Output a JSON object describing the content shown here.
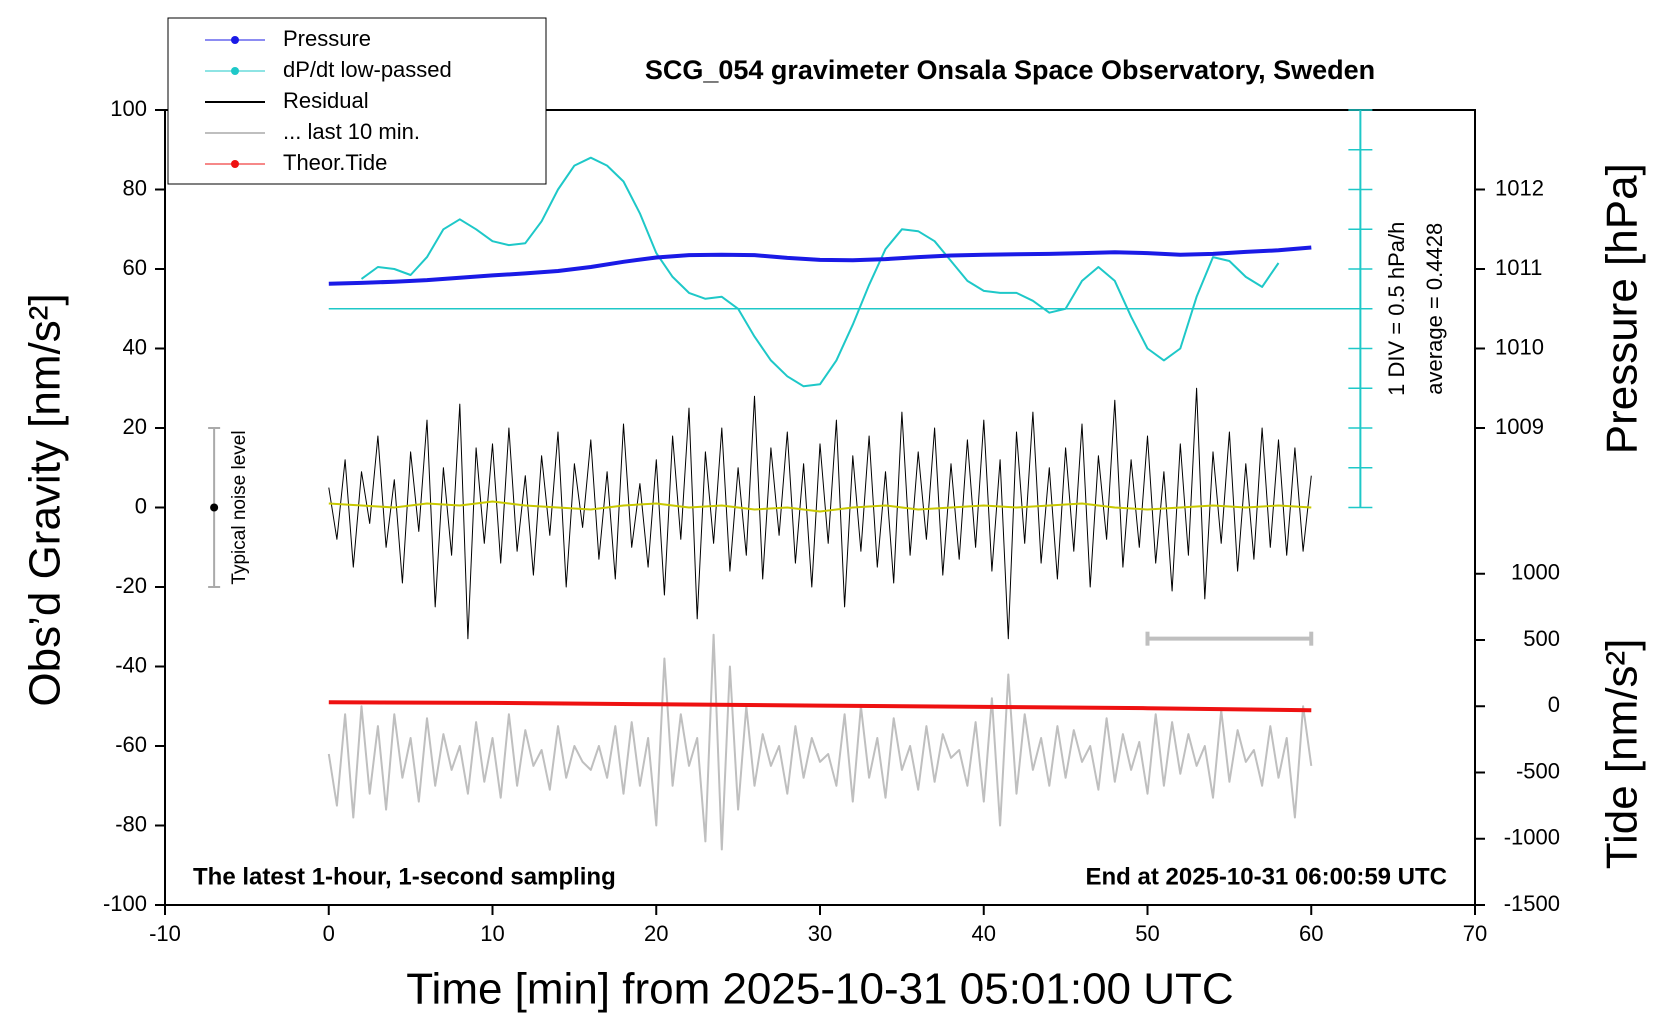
{
  "chart_data": {
    "type": "line",
    "title": "SCG_054 gravimeter Onsala Space Observatory, Sweden",
    "x_label": "Time [min] from 2025-10-31 05:01:00 UTC",
    "y_label": "Obs’d Gravity [nm/s²]",
    "y2_label": "Pressure [hPa]",
    "y3_label": "Tide [nm/s²]",
    "note_left": "The latest 1-hour, 1-second sampling",
    "note_right": "End at 2025-10-31 06:00:59 UTC",
    "xlim": [
      -10,
      70
    ],
    "xticks": [
      -10,
      0,
      10,
      20,
      30,
      40,
      50,
      60,
      70
    ],
    "ylim": [
      -100,
      100
    ],
    "yticks": [
      -100,
      -80,
      -60,
      -40,
      -20,
      0,
      20,
      40,
      60,
      80,
      100
    ],
    "y2lim": [
      1003,
      1013
    ],
    "y2ticks": [
      1009,
      1010,
      1011,
      1012
    ],
    "y3lim": [
      -1500,
      4500
    ],
    "y3ticks": [
      -1500,
      -1000,
      -500,
      0,
      500,
      1000
    ],
    "dpdt_scale": {
      "x": 63,
      "ylim": [
        0,
        100
      ],
      "ticks": [
        0,
        10,
        20,
        30,
        40,
        50,
        60,
        70,
        80,
        90,
        100
      ],
      "baseline": 50,
      "div_label": "1 DIV = 0.5 hPa/h",
      "average_label": "average = 0.4428"
    },
    "noise": {
      "x": -7,
      "value": 0,
      "error": 20,
      "label": "Typical noise level"
    },
    "window_bar": {
      "x": [
        50,
        60
      ],
      "y": -33
    },
    "x": [
      0,
      0.5,
      1,
      1.5,
      2,
      2.5,
      3,
      3.5,
      4,
      4.5,
      5,
      5.5,
      6,
      6.5,
      7,
      7.5,
      8,
      8.5,
      9,
      9.5,
      10,
      10.5,
      11,
      11.5,
      12,
      12.5,
      13,
      13.5,
      14,
      14.5,
      15,
      15.5,
      16,
      16.5,
      17,
      17.5,
      18,
      18.5,
      19,
      19.5,
      20,
      20.5,
      21,
      21.5,
      22,
      22.5,
      23,
      23.5,
      24,
      24.5,
      25,
      25.5,
      26,
      26.5,
      27,
      27.5,
      28,
      28.5,
      29,
      29.5,
      30,
      30.5,
      31,
      31.5,
      32,
      32.5,
      33,
      33.5,
      34,
      34.5,
      35,
      35.5,
      36,
      36.5,
      37,
      37.5,
      38,
      38.5,
      39,
      39.5,
      40,
      40.5,
      41,
      41.5,
      42,
      42.5,
      43,
      43.5,
      44,
      44.5,
      45,
      45.5,
      46,
      46.5,
      47,
      47.5,
      48,
      48.5,
      49,
      49.5,
      50,
      50.5,
      51,
      51.5,
      52,
      52.5,
      53,
      53.5,
      54,
      54.5,
      55,
      55.5,
      56,
      56.5,
      57,
      57.5,
      58,
      58.5,
      59,
      59.5,
      60
    ],
    "series": [
      {
        "name": "Pressure",
        "color": "#1a1ae6",
        "axis": "y2",
        "width": 4,
        "marker": true,
        "x": [
          0,
          2,
          4,
          6,
          8,
          10,
          12,
          14,
          16,
          18,
          20,
          22,
          24,
          26,
          28,
          30,
          32,
          34,
          36,
          38,
          40,
          42,
          44,
          46,
          48,
          50,
          52,
          54,
          56,
          58,
          60
        ],
        "values": [
          1010.815,
          1010.825,
          1010.84,
          1010.86,
          1010.89,
          1010.92,
          1010.945,
          1010.975,
          1011.025,
          1011.09,
          1011.145,
          1011.175,
          1011.18,
          1011.175,
          1011.14,
          1011.115,
          1011.11,
          1011.125,
          1011.15,
          1011.17,
          1011.18,
          1011.185,
          1011.19,
          1011.2,
          1011.21,
          1011.2,
          1011.18,
          1011.19,
          1011.215,
          1011.235,
          1011.27
        ]
      },
      {
        "name": "dP/dt low-passed",
        "color": "#1ec8c8",
        "width": 2,
        "marker": true,
        "x": [
          2,
          3,
          4,
          5,
          6,
          7,
          8,
          9,
          10,
          11,
          12,
          13,
          14,
          15,
          16,
          17,
          18,
          19,
          20,
          21,
          22,
          23,
          24,
          25,
          26,
          27,
          28,
          29,
          30,
          31,
          32,
          33,
          34,
          35,
          36,
          37,
          38,
          39,
          40,
          41,
          42,
          43,
          44,
          45,
          46,
          47,
          48,
          49,
          50,
          51,
          52,
          53,
          54,
          55,
          56,
          57,
          58
        ],
        "values": [
          57.5,
          60.5,
          60,
          58.5,
          63,
          70,
          72.5,
          70,
          67,
          66,
          66.5,
          72,
          80,
          86,
          88,
          86,
          82,
          74,
          64,
          58,
          54,
          52.5,
          53,
          50,
          43,
          37,
          33,
          30.5,
          31,
          37,
          46,
          56,
          65,
          70,
          69.5,
          67,
          62,
          57,
          54.5,
          54,
          54,
          52,
          49,
          50,
          57,
          60.5,
          57,
          48,
          40,
          37,
          40,
          53,
          63,
          62,
          58,
          55.5,
          61.5
        ]
      },
      {
        "name": "Residual",
        "color": "#000000",
        "width": 1,
        "marker": false,
        "values": [
          5,
          -8,
          12,
          -15,
          9,
          -4,
          18,
          -10,
          7,
          -19,
          14,
          -6,
          22,
          -25,
          10,
          -12,
          26,
          -33,
          15,
          -9,
          16,
          -14,
          20,
          -11,
          8,
          -17,
          13,
          -7,
          19,
          -20,
          11,
          -5,
          17,
          -13,
          9,
          -18,
          21,
          -10,
          6,
          -15,
          12,
          -22,
          18,
          -8,
          25,
          -28,
          14,
          -9,
          20,
          -16,
          10,
          -12,
          28,
          -18,
          15,
          -7,
          19,
          -14,
          11,
          -20,
          16,
          -9,
          22,
          -25,
          13,
          -11,
          18,
          -15,
          9,
          -19,
          24,
          -12,
          14,
          -8,
          20,
          -17,
          11,
          -13,
          17,
          -10,
          22,
          -16,
          12,
          -33,
          19,
          -9,
          24,
          -14,
          10,
          -18,
          15,
          -11,
          21,
          -20,
          13,
          -8,
          27,
          -15,
          12,
          -10,
          18,
          -14,
          9,
          -21,
          16,
          -12,
          30,
          -23,
          14,
          -9,
          19,
          -16,
          11,
          -13,
          20,
          -10,
          17,
          -12,
          15,
          -11,
          8
        ]
      },
      {
        "name": "... last 10 min.",
        "color": "#bfbfbf",
        "width": 2,
        "marker": false,
        "values": [
          -62,
          -75,
          -52,
          -78,
          -50,
          -72,
          -55,
          -76,
          -52,
          -68,
          -58,
          -74,
          -53,
          -70,
          -57,
          -66,
          -60,
          -72,
          -54,
          -69,
          -58,
          -73,
          -52,
          -70,
          -56,
          -65,
          -61,
          -71,
          -55,
          -68,
          -60,
          -64,
          -66,
          -60,
          -68,
          -55,
          -72,
          -54,
          -70,
          -58,
          -80,
          -38,
          -70,
          -52,
          -65,
          -58,
          -84,
          -32,
          -86,
          -40,
          -76,
          -50,
          -70,
          -57,
          -65,
          -60,
          -72,
          -55,
          -68,
          -58,
          -64,
          -62,
          -70,
          -52,
          -74,
          -50,
          -68,
          -58,
          -73,
          -53,
          -66,
          -60,
          -71,
          -55,
          -69,
          -57,
          -63,
          -61,
          -70,
          -54,
          -74,
          -48,
          -80,
          -42,
          -72,
          -52,
          -66,
          -58,
          -70,
          -55,
          -68,
          -56,
          -64,
          -60,
          -71,
          -53,
          -69,
          -57,
          -66,
          -59,
          -72,
          -52,
          -70,
          -54,
          -67,
          -57,
          -65,
          -60,
          -73,
          -51,
          -69,
          -56,
          -64,
          -61,
          -70,
          -55,
          -68,
          -58,
          -78,
          -50,
          -65
        ]
      },
      {
        "name": "Theor.Tide",
        "color": "#ee1111",
        "axis": "y3",
        "width": 4,
        "marker": true,
        "x": [
          0,
          10,
          20,
          30,
          40,
          50,
          60
        ],
        "values": [
          30,
          25,
          15,
          5,
          -5,
          -15,
          -30
        ]
      },
      {
        "color": "#c8c800",
        "width": 2,
        "x": [
          0,
          2,
          4,
          6,
          8,
          10,
          12,
          14,
          16,
          18,
          20,
          22,
          24,
          26,
          28,
          30,
          32,
          34,
          36,
          38,
          40,
          42,
          44,
          46,
          48,
          50,
          52,
          54,
          56,
          58,
          60
        ],
        "values": [
          1,
          0.5,
          0,
          1,
          0.5,
          1.5,
          0.5,
          0,
          -0.5,
          0.5,
          1,
          0,
          0.5,
          -0.5,
          0,
          -1,
          0,
          0.5,
          -0.5,
          0,
          0.5,
          0,
          0.5,
          1,
          0,
          -0.5,
          0,
          0.5,
          0,
          0.5,
          0
        ]
      }
    ]
  }
}
